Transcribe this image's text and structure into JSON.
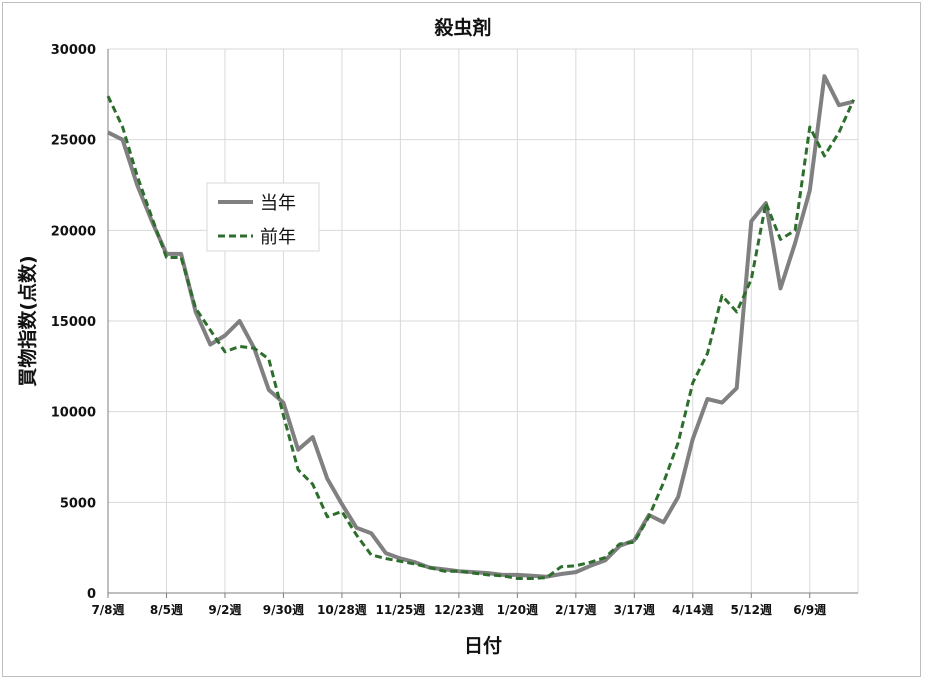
{
  "chart_data": {
    "type": "line",
    "title": "殺虫剤",
    "xlabel": "日付",
    "ylabel": "買物指数(点数)",
    "ylim": [
      0,
      30000
    ],
    "yticks": [
      0,
      5000,
      10000,
      15000,
      20000,
      25000,
      30000
    ],
    "x_tick_labels": [
      {
        "index": 0,
        "label": "7/8週"
      },
      {
        "index": 4,
        "label": "8/5週"
      },
      {
        "index": 8,
        "label": "9/2週"
      },
      {
        "index": 12,
        "label": "9/30週"
      },
      {
        "index": 16,
        "label": "10/28週"
      },
      {
        "index": 20,
        "label": "11/25週"
      },
      {
        "index": 24,
        "label": "12/23週"
      },
      {
        "index": 28,
        "label": "1/20週"
      },
      {
        "index": 32,
        "label": "2/17週"
      },
      {
        "index": 36,
        "label": "3/17週"
      },
      {
        "index": 40,
        "label": "4/14週"
      },
      {
        "index": 44,
        "label": "5/12週"
      },
      {
        "index": 48,
        "label": "6/9週"
      }
    ],
    "grid": "vertical-and-horizontal",
    "legend_position": "upper-left",
    "series": [
      {
        "name": "当年",
        "color": "#808080",
        "style": "solid",
        "values": [
          25400,
          25000,
          22500,
          20500,
          18700,
          18700,
          15500,
          13700,
          14200,
          15000,
          13500,
          11200,
          10500,
          7900,
          8600,
          6300,
          4900,
          3600,
          3300,
          2200,
          1900,
          1700,
          1400,
          1300,
          1200,
          1150,
          1100,
          1000,
          1000,
          950,
          900,
          1050,
          1150,
          1500,
          1800,
          2600,
          2900,
          4300,
          3900,
          5300,
          8500,
          10700,
          10500,
          11300,
          20500,
          21500,
          16800,
          19300,
          22200,
          28500,
          26900,
          27100
        ]
      },
      {
        "name": "前年",
        "color": "#2d6e2d",
        "style": "dashed",
        "values": [
          27400,
          25700,
          23000,
          20700,
          18500,
          18500,
          15700,
          14500,
          13300,
          13600,
          13500,
          12900,
          9800,
          6800,
          6000,
          4200,
          4500,
          3200,
          2100,
          1900,
          1750,
          1600,
          1400,
          1200,
          1200,
          1100,
          1000,
          950,
          800,
          800,
          850,
          1450,
          1500,
          1700,
          1950,
          2700,
          2800,
          4200,
          6100,
          8300,
          11600,
          13200,
          16400,
          15500,
          17300,
          21500,
          19500,
          20000,
          25700,
          24100,
          25400,
          27200
        ]
      }
    ]
  }
}
